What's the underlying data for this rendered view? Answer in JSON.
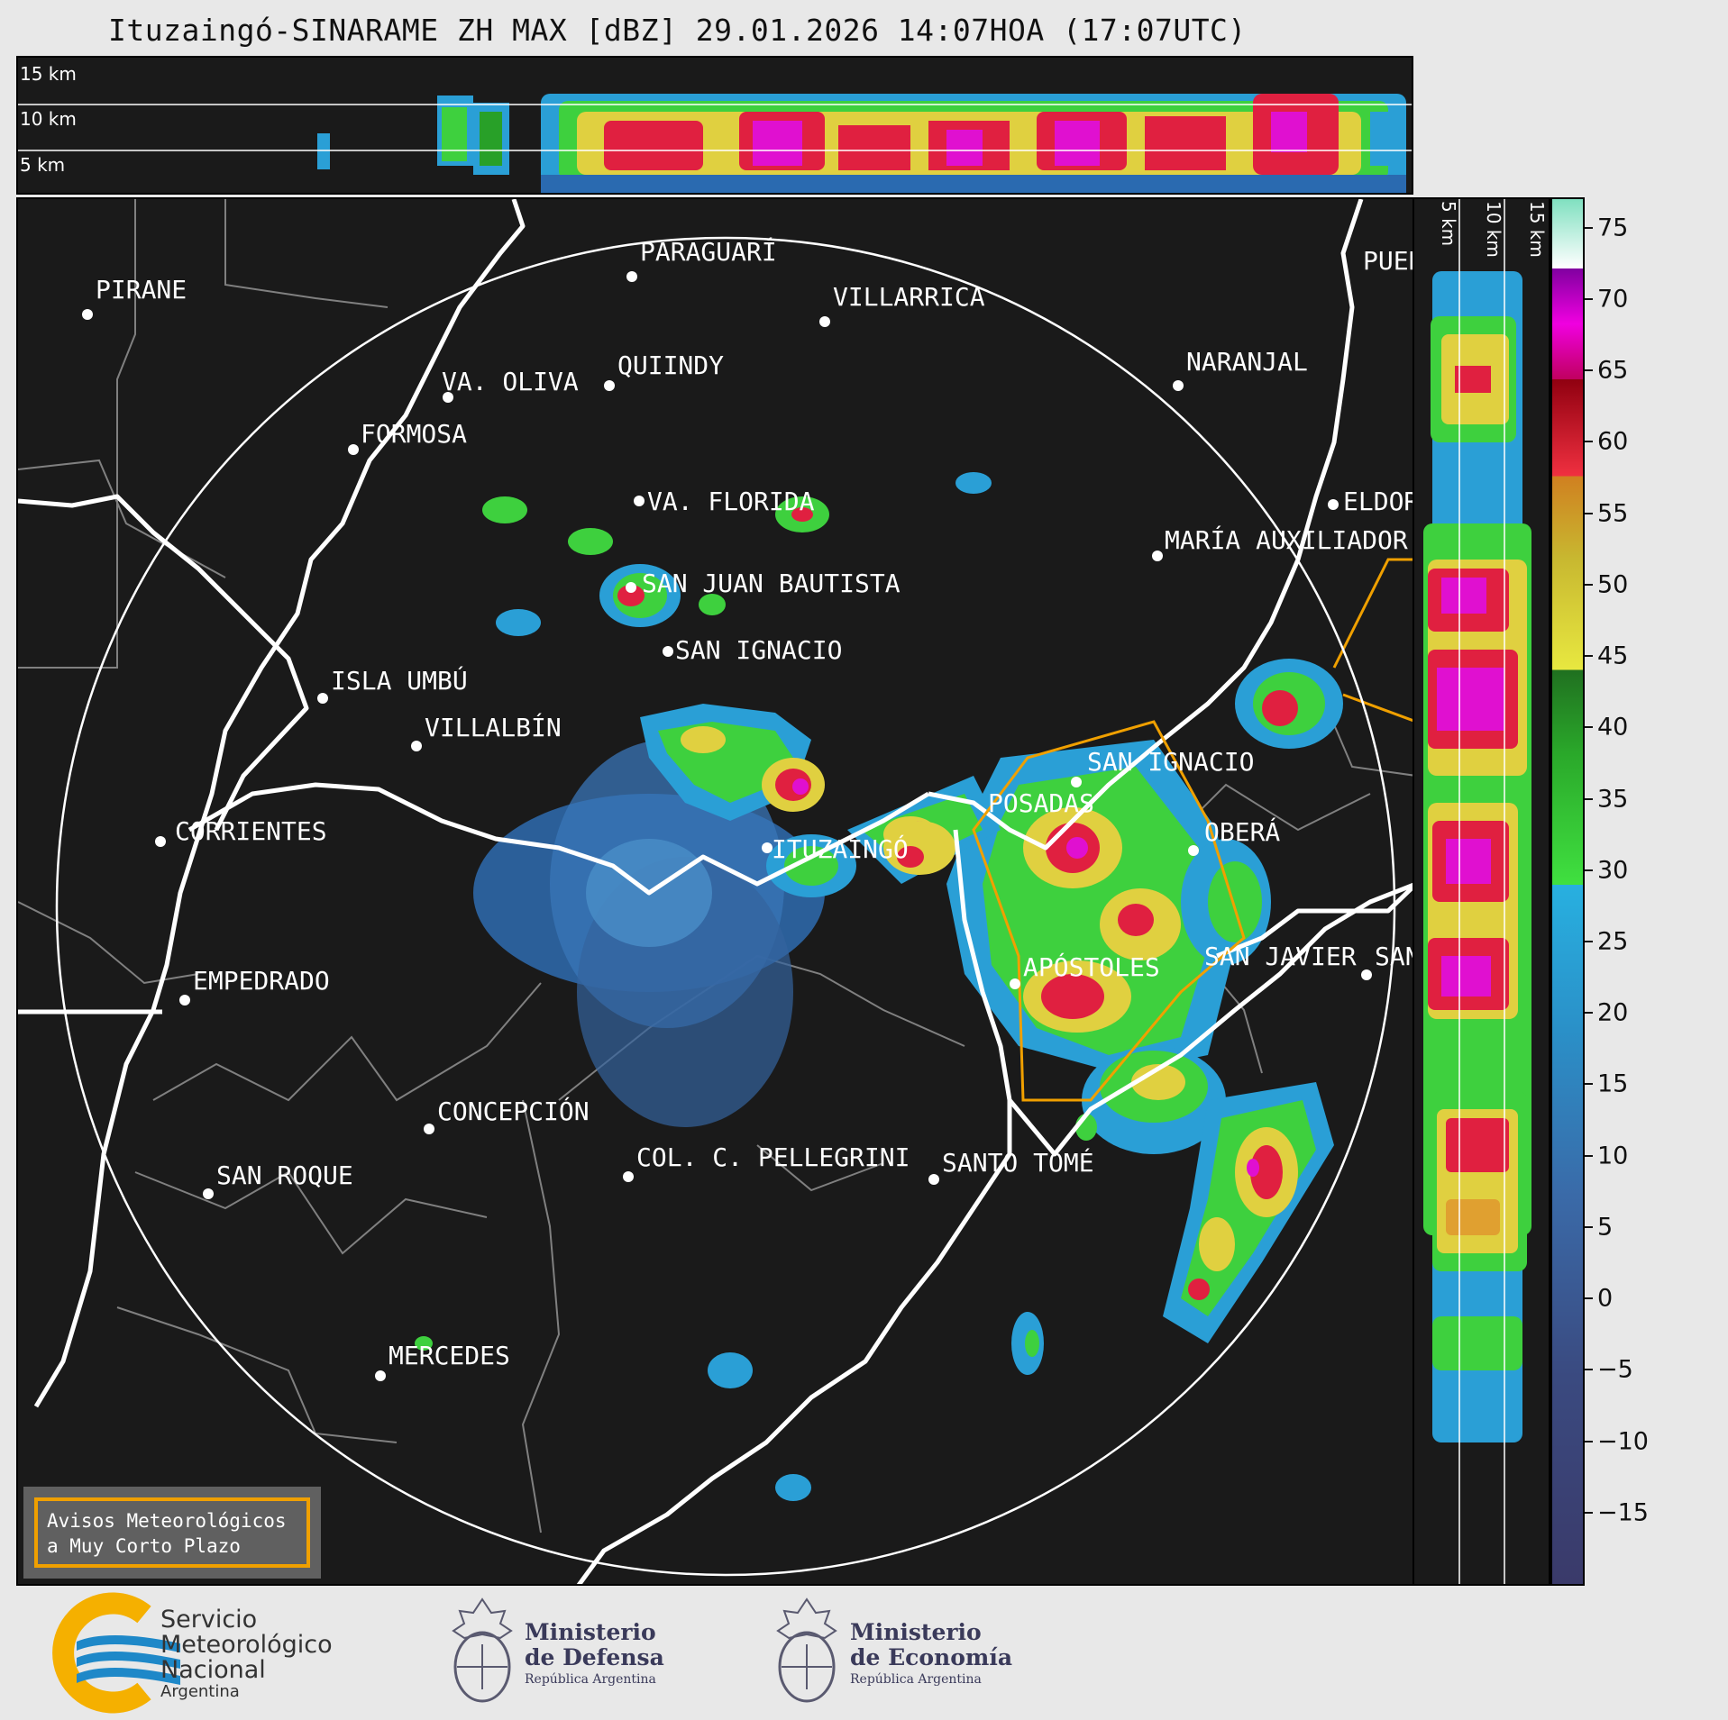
{
  "title": "Ituzaingó-SINARAME ZH MAX [dBZ] 29.01.2026 14:07HOA (17:07UTC)",
  "top_panel": {
    "height_labels": [
      "15 km",
      "10 km",
      "5 km"
    ]
  },
  "side_panel": {
    "height_labels": [
      "5 km",
      "10 km",
      "15 km"
    ]
  },
  "colorbar": {
    "units": "dBZ",
    "range": [
      -20,
      77
    ],
    "ticks": [
      "75",
      "70",
      "65",
      "60",
      "55",
      "50",
      "45",
      "40",
      "35",
      "30",
      "25",
      "20",
      "15",
      "10",
      "5",
      "0",
      "−5",
      "−10",
      "−15"
    ],
    "tick_values": [
      75,
      70,
      65,
      60,
      55,
      50,
      45,
      40,
      35,
      30,
      25,
      20,
      15,
      10,
      5,
      0,
      -5,
      -10,
      -15
    ]
  },
  "cities": [
    {
      "name": "PIRANE"
    },
    {
      "name": "PARAGUARÍ"
    },
    {
      "name": "VILLARRICA"
    },
    {
      "name": "QUIINDY"
    },
    {
      "name": "VA. OLIVA"
    },
    {
      "name": "NARANJAL"
    },
    {
      "name": "PUER"
    },
    {
      "name": "FORMOSA"
    },
    {
      "name": "VA. FLORIDA"
    },
    {
      "name": "ELDOR"
    },
    {
      "name": "MARÍA AUXILIADOR"
    },
    {
      "name": "SAN JUAN BAUTISTA"
    },
    {
      "name": "SAN IGNACIO"
    },
    {
      "name": "ISLA UMBÚ"
    },
    {
      "name": "VILLALBÍN"
    },
    {
      "name": "SAN IGNACIO"
    },
    {
      "name": "POSADAS"
    },
    {
      "name": "CORRIENTES"
    },
    {
      "name": "ITUZAINGÓ"
    },
    {
      "name": "OBERÁ"
    },
    {
      "name": "EMPEDRADO"
    },
    {
      "name": "APÓSTOLES"
    },
    {
      "name": "SAN JAVIER"
    },
    {
      "name": "SAN"
    },
    {
      "name": "CONCEPCIÓN"
    },
    {
      "name": "SAN ROQUE"
    },
    {
      "name": "COL. C. PELLEGRINI"
    },
    {
      "name": "SANTO TOMÉ"
    },
    {
      "name": "MERCEDES"
    }
  ],
  "warning": {
    "line1": "Avisos Meteorológicos",
    "line2": "a Muy Corto Plazo"
  },
  "logos": {
    "smn": {
      "line1": "Servicio",
      "line2": "Meteorológico",
      "line3": "Nacional",
      "line4": "Argentina"
    },
    "defensa": {
      "line1": "Ministerio",
      "line2": "de Defensa",
      "line3": "República Argentina"
    },
    "economia": {
      "line1": "Ministerio",
      "line2": "de Economía",
      "line3": "República Argentina"
    }
  },
  "colors": {
    "background": "#1a1a1a",
    "page": "#e8e8e8",
    "border_white": "#ffffff",
    "warning_polygon": "#f0a000",
    "smn_blue": "#1e88c8",
    "smn_yellow": "#f5b000"
  }
}
